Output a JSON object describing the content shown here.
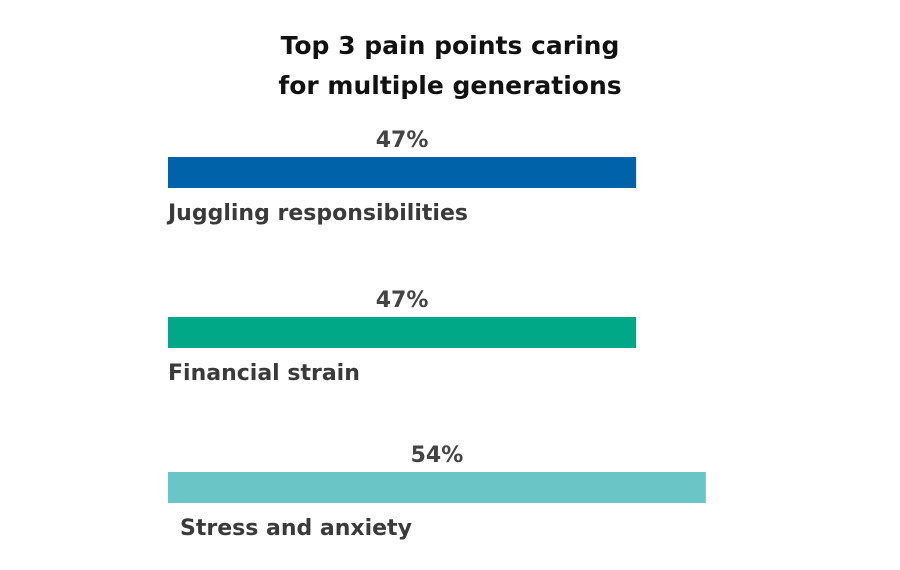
{
  "chart_data": {
    "type": "bar",
    "orientation": "horizontal",
    "title": "Top 3 pain points caring for multiple generations",
    "title_lines": [
      "Top 3 pain points caring",
      "for multiple generations"
    ],
    "categories": [
      "Juggling responsibilities",
      "Financial strain",
      "Stress and anxiety"
    ],
    "values": [
      47,
      47,
      54
    ],
    "value_labels": [
      "47%",
      "47%",
      "54%"
    ],
    "colors": [
      "#0062a8",
      "#00a887",
      "#6ac6c6"
    ],
    "unit": "%",
    "grid": false,
    "legend": "none"
  }
}
